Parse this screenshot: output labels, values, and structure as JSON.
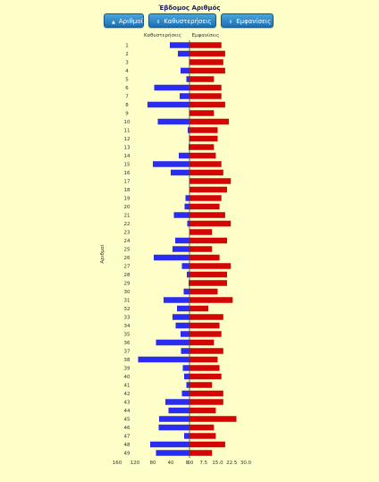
{
  "header": {
    "title": "Έβδομος Αριθμός"
  },
  "buttons": [
    {
      "label": "Αριθμοί",
      "icon": "sort-up-icon",
      "glyph": "▲"
    },
    {
      "label": "Καθυστερήσεις",
      "icon": "sort-icon",
      "glyph": "⇕"
    },
    {
      "label": "Εμφανίσεις",
      "icon": "sort-icon",
      "glyph": "⇕"
    }
  ],
  "chart_data": {
    "type": "bar",
    "orientation": "horizontal-diverging",
    "ylabel": "Αριθμοί",
    "left_header": "Καθυστερήσεις",
    "right_header": "Εμφανίσεις",
    "categories": [
      "1",
      "2",
      "3",
      "4",
      "5",
      "6",
      "7",
      "8",
      "9",
      "10",
      "11",
      "12",
      "13",
      "14",
      "15",
      "16",
      "17",
      "18",
      "19",
      "20",
      "21",
      "22",
      "23",
      "24",
      "25",
      "26",
      "27",
      "28",
      "29",
      "30",
      "31",
      "32",
      "33",
      "34",
      "35",
      "36",
      "37",
      "38",
      "39",
      "40",
      "41",
      "42",
      "43",
      "44",
      "45",
      "46",
      "47",
      "48",
      "49"
    ],
    "left_ticks": [
      "160",
      "120",
      "80",
      "40",
      "0"
    ],
    "right_ticks": [
      "0.0",
      "7.5",
      "15.0",
      "22.5",
      "30.0"
    ],
    "colors": {
      "delays": "#2a2cf0",
      "appearances": "#d30505"
    },
    "series": [
      {
        "name": "Καθυστερήσεις",
        "values": [
          44,
          26,
          1,
          20,
          7,
          79,
          22,
          94,
          1,
          71,
          4,
          1,
          2,
          24,
          82,
          42,
          0,
          0,
          9,
          11,
          35,
          5,
          0,
          32,
          38,
          80,
          17,
          6,
          2,
          13,
          58,
          28,
          38,
          31,
          20,
          75,
          19,
          115,
          15,
          12,
          7,
          17,
          54,
          47,
          68,
          69,
          12,
          88,
          75
        ]
      },
      {
        "name": "Εμφανίσεις",
        "values": [
          17,
          19,
          18,
          19,
          13,
          17,
          17,
          19,
          13,
          21,
          15,
          15,
          13,
          14,
          17,
          18,
          22,
          20,
          17,
          16,
          19,
          22,
          12,
          20,
          12,
          16,
          22,
          20,
          20,
          15,
          23,
          10,
          18,
          16,
          17,
          13,
          18,
          15,
          16,
          17,
          12,
          18,
          18,
          14,
          25,
          13,
          14,
          19,
          12
        ]
      }
    ],
    "left_range": [
      0,
      160
    ],
    "right_range": [
      0,
      30
    ]
  }
}
